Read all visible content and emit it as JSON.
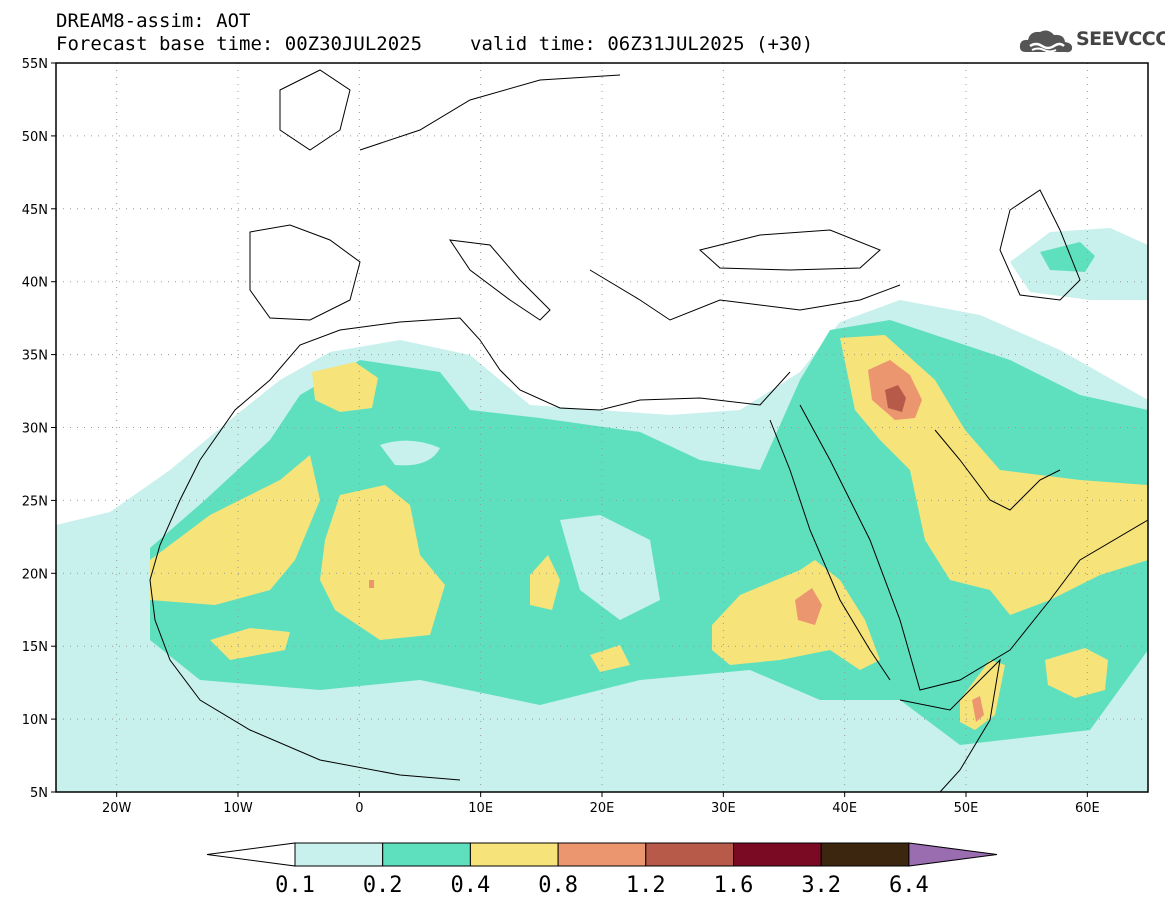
{
  "header": {
    "title": "DREAM8-assim: AOT",
    "base_time": "Forecast base time: 00Z30JUL2025",
    "valid_time": "valid time: 06Z31JUL2025 (+30)"
  },
  "logo": {
    "text": "SEEVCCC",
    "icon": "cloud-icon"
  },
  "map_data": {
    "lon_range": [
      -25,
      65
    ],
    "lat_range": [
      5,
      55
    ],
    "lat_labels": [
      "55N",
      "50N",
      "45N",
      "40N",
      "35N",
      "30N",
      "25N",
      "20N",
      "15N",
      "10N",
      "5N"
    ],
    "lon_labels": [
      "20W",
      "10W",
      "0",
      "10E",
      "20E",
      "30E",
      "40E",
      "50E",
      "60E"
    ],
    "grid": "dotted"
  },
  "colorbar": {
    "labels": [
      "0.1",
      "0.2",
      "0.4",
      "0.8",
      "1.2",
      "1.6",
      "3.2",
      "6.4"
    ],
    "colors": [
      "#c8f0ec",
      "#5ee0bf",
      "#f6e47a",
      "#ec9670",
      "#b85a4a",
      "#7a0a24",
      "#3c2610",
      "#9a6cb0"
    ],
    "low_color": "#ffffff"
  }
}
